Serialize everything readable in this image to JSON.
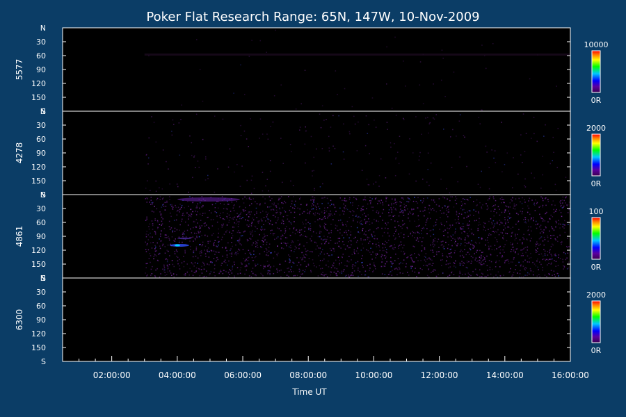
{
  "background_color": "#0b3d66",
  "chart_data": {
    "type": "heatmap",
    "title": "Poker Flat Research Range: 65N, 147W, 10-Nov-2009",
    "xlabel": "Time UT",
    "x_range_hours": [
      0.5,
      16.0
    ],
    "x_ticks": [
      "02:00:00",
      "04:00:00",
      "06:00:00",
      "08:00:00",
      "10:00:00",
      "12:00:00",
      "14:00:00",
      "16:00:00"
    ],
    "x_tick_hours": [
      2,
      4,
      6,
      8,
      10,
      12,
      14,
      16
    ],
    "y_ticks": [
      "N",
      "30",
      "60",
      "90",
      "120",
      "150",
      "S"
    ],
    "colorscale": [
      "#3c0050",
      "#5a00a0",
      "#0000ff",
      "#00c8ff",
      "#00ff00",
      "#ffff00",
      "#ff8000",
      "#ff0000"
    ],
    "data_start_hour": 3.0,
    "panels": [
      {
        "label": "5577",
        "cb_max": "10000",
        "cb_min": "0R",
        "density": 0.004,
        "brightness": 0.05
      },
      {
        "label": "4278",
        "cb_max": "2000",
        "cb_min": "0R",
        "density": 0.02,
        "brightness": 0.15
      },
      {
        "label": "4861",
        "cb_max": "100",
        "cb_min": "0R",
        "density": 0.22,
        "brightness": 0.35
      },
      {
        "label": "6300",
        "cb_max": "2000",
        "cb_min": "0R",
        "density": 0.0,
        "brightness": 0.0
      }
    ]
  }
}
